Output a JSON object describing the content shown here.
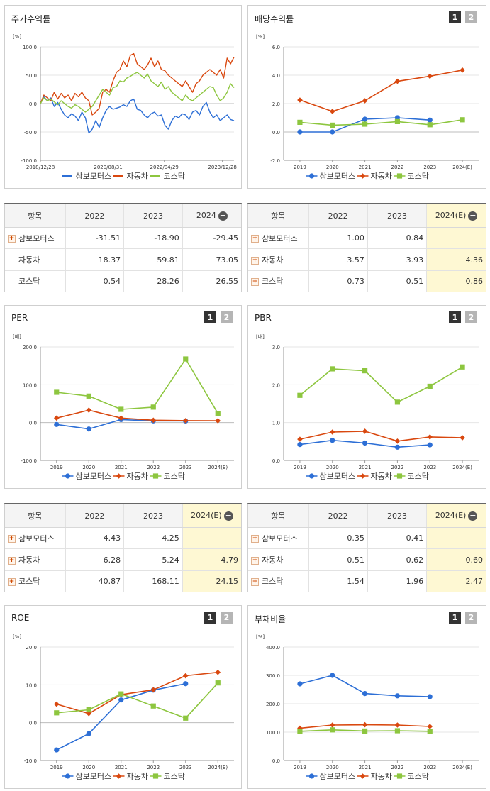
{
  "colors": {
    "series1": "#2d6fd6",
    "series2": "#d9480f",
    "series3": "#8dc63f"
  },
  "panels": [
    {
      "id": "stock",
      "title": "주가수익률",
      "tabs": [],
      "chart_data": {
        "type": "line",
        "unit": "[%]",
        "yticks": [
          "100.0",
          "50.0",
          "0.0",
          "-50.0",
          "-100.0"
        ],
        "ylim": [
          -100,
          100
        ],
        "xticks": [
          "2018/12/28",
          "2020/08/31",
          "2022/04/29",
          "2023/12/28"
        ],
        "x_range": [
          "2018/12/28",
          "2024/04/30"
        ],
        "series": [
          {
            "name": "삼보모터스",
            "values": [
              0,
              12,
              5,
              10,
              -5,
              2,
              -10,
              -20,
              -25,
              -18,
              -22,
              -30,
              -15,
              -25,
              -52,
              -45,
              -30,
              -42,
              -25,
              -12,
              -5,
              -10,
              -8,
              -6,
              -2,
              -5,
              5,
              8,
              -10,
              -12,
              -20,
              -25,
              -18,
              -15,
              -22,
              -20,
              -38,
              -45,
              -30,
              -22,
              -25,
              -18,
              -20,
              -28,
              -15,
              -12,
              -20,
              -5,
              2,
              -15,
              -25,
              -20,
              -30,
              -25,
              -20,
              -28,
              -30
            ]
          },
          {
            "name": "자동차",
            "values": [
              0,
              15,
              10,
              5,
              20,
              8,
              18,
              10,
              15,
              5,
              18,
              12,
              20,
              10,
              5,
              -20,
              -15,
              -8,
              20,
              25,
              20,
              40,
              55,
              60,
              75,
              65,
              85,
              88,
              70,
              65,
              60,
              68,
              80,
              65,
              75,
              60,
              58,
              50,
              45,
              40,
              35,
              30,
              40,
              30,
              20,
              35,
              40,
              50,
              55,
              60,
              55,
              50,
              60,
              45,
              80,
              70,
              82
            ]
          },
          {
            "name": "코스닥",
            "values": [
              0,
              10,
              5,
              8,
              3,
              -2,
              5,
              0,
              -5,
              -8,
              -2,
              -5,
              -10,
              -15,
              -10,
              -5,
              5,
              15,
              25,
              20,
              15,
              28,
              30,
              40,
              38,
              45,
              48,
              52,
              55,
              50,
              45,
              52,
              40,
              35,
              30,
              38,
              25,
              30,
              20,
              15,
              10,
              5,
              15,
              8,
              5,
              10,
              15,
              20,
              25,
              30,
              28,
              15,
              5,
              10,
              20,
              35,
              28
            ]
          }
        ]
      },
      "table": {
        "header": [
          "항목",
          "2022",
          "2023",
          "2024"
        ],
        "rows": [
          {
            "name": "삼보모터스",
            "plus": true,
            "values": [
              "-31.51",
              "-18.90",
              "-29.45"
            ]
          },
          {
            "name": "자동차",
            "plus": false,
            "values": [
              "18.37",
              "59.81",
              "73.05"
            ]
          },
          {
            "name": "코스닥",
            "plus": false,
            "values": [
              "0.54",
              "28.26",
              "26.55"
            ]
          }
        ],
        "highlight_last": false
      }
    },
    {
      "id": "dividend",
      "title": "배당수익률",
      "tabs": [
        "1",
        "2"
      ],
      "chart_data": {
        "type": "line",
        "unit": "[%]",
        "yticks": [
          "6.0",
          "4.0",
          "2.0",
          "0.0",
          "-2.0"
        ],
        "ylim": [
          -2,
          6
        ],
        "categories": [
          "2019",
          "2020",
          "2021",
          "2022",
          "2023",
          "2024(E)"
        ],
        "series": [
          {
            "name": "삼보모터스",
            "values": [
              0,
              0,
              0.9,
              1.0,
              0.84,
              null
            ]
          },
          {
            "name": "자동차",
            "values": [
              2.25,
              1.45,
              2.2,
              3.57,
              3.93,
              4.36
            ]
          },
          {
            "name": "코스닥",
            "values": [
              0.68,
              0.48,
              0.55,
              0.73,
              0.51,
              0.86
            ]
          }
        ]
      },
      "table": {
        "header": [
          "항목",
          "2022",
          "2023",
          "2024(E)"
        ],
        "rows": [
          {
            "name": "삼보모터스",
            "plus": true,
            "values": [
              "1.00",
              "0.84",
              ""
            ]
          },
          {
            "name": "자동차",
            "plus": true,
            "values": [
              "3.57",
              "3.93",
              "4.36"
            ]
          },
          {
            "name": "코스닥",
            "plus": true,
            "values": [
              "0.73",
              "0.51",
              "0.86"
            ]
          }
        ],
        "highlight_last": true
      }
    },
    {
      "id": "per",
      "title": "PER",
      "tabs": [
        "1",
        "2"
      ],
      "chart_data": {
        "type": "line",
        "unit": "[배]",
        "yticks": [
          "200.0",
          "100.0",
          "0.0",
          "-100.0"
        ],
        "ylim": [
          -100,
          200
        ],
        "categories": [
          "2019",
          "2020",
          "2021",
          "2022",
          "2023",
          "2024(E)"
        ],
        "series": [
          {
            "name": "삼보모터스",
            "values": [
              -5,
              -17,
              8,
              4.43,
              4.25,
              null
            ]
          },
          {
            "name": "자동차",
            "values": [
              12,
              33,
              12,
              6.28,
              5.24,
              4.79
            ]
          },
          {
            "name": "코스닥",
            "values": [
              80,
              70,
              35,
              40.87,
              168.11,
              24.15
            ]
          }
        ]
      },
      "table": {
        "header": [
          "항목",
          "2022",
          "2023",
          "2024(E)"
        ],
        "rows": [
          {
            "name": "삼보모터스",
            "plus": true,
            "values": [
              "4.43",
              "4.25",
              ""
            ]
          },
          {
            "name": "자동차",
            "plus": true,
            "values": [
              "6.28",
              "5.24",
              "4.79"
            ]
          },
          {
            "name": "코스닥",
            "plus": true,
            "values": [
              "40.87",
              "168.11",
              "24.15"
            ]
          }
        ],
        "highlight_last": true
      }
    },
    {
      "id": "pbr",
      "title": "PBR",
      "tabs": [
        "1",
        "2"
      ],
      "chart_data": {
        "type": "line",
        "unit": "[배]",
        "yticks": [
          "3.0",
          "2.0",
          "1.0",
          "0.0"
        ],
        "ylim": [
          0,
          3
        ],
        "categories": [
          "2019",
          "2020",
          "2021",
          "2022",
          "2023",
          "2024(E)"
        ],
        "series": [
          {
            "name": "삼보모터스",
            "values": [
              0.42,
              0.53,
              0.46,
              0.35,
              0.41,
              null
            ]
          },
          {
            "name": "자동차",
            "values": [
              0.56,
              0.75,
              0.77,
              0.51,
              0.62,
              0.6
            ]
          },
          {
            "name": "코스닥",
            "values": [
              1.72,
              2.42,
              2.37,
              1.54,
              1.96,
              2.47
            ]
          }
        ]
      },
      "table": {
        "header": [
          "항목",
          "2022",
          "2023",
          "2024(E)"
        ],
        "rows": [
          {
            "name": "삼보모터스",
            "plus": true,
            "values": [
              "0.35",
              "0.41",
              ""
            ]
          },
          {
            "name": "자동차",
            "plus": true,
            "values": [
              "0.51",
              "0.62",
              "0.60"
            ]
          },
          {
            "name": "코스닥",
            "plus": true,
            "values": [
              "1.54",
              "1.96",
              "2.47"
            ]
          }
        ],
        "highlight_last": true
      }
    },
    {
      "id": "roe",
      "title": "ROE",
      "tabs": [
        "1",
        "2"
      ],
      "chart_data": {
        "type": "line",
        "unit": "[%]",
        "yticks": [
          "20.0",
          "10.0",
          "0.0",
          "-10.0"
        ],
        "ylim": [
          -10,
          20
        ],
        "categories": [
          "2019",
          "2020",
          "2021",
          "2022",
          "2023",
          "2024(E)"
        ],
        "series": [
          {
            "name": "삼보모터스",
            "values": [
              -7.2,
              -2.9,
              6.0,
              8.6,
              10.3,
              null
            ]
          },
          {
            "name": "자동차",
            "values": [
              4.9,
              2.4,
              7.4,
              8.7,
              12.4,
              13.3
            ]
          },
          {
            "name": "코스닥",
            "values": [
              2.6,
              3.4,
              7.6,
              4.4,
              1.2,
              10.5
            ]
          }
        ]
      }
    },
    {
      "id": "debt",
      "title": "부채비율",
      "tabs": [
        "1",
        "2"
      ],
      "chart_data": {
        "type": "line",
        "unit": "[%]",
        "yticks": [
          "400.0",
          "300.0",
          "200.0",
          "100.0",
          "0.0"
        ],
        "ylim": [
          0,
          400
        ],
        "categories": [
          "2019",
          "2020",
          "2021",
          "2022",
          "2023",
          "2024(E)"
        ],
        "series": [
          {
            "name": "삼보모터스",
            "values": [
              270,
              300,
              236,
              228,
              225,
              null
            ]
          },
          {
            "name": "자동차",
            "values": [
              114,
              125,
              126,
              125,
              120,
              null
            ]
          },
          {
            "name": "코스닥",
            "values": [
              103,
              108,
              104,
              105,
              103,
              null
            ]
          }
        ]
      }
    }
  ]
}
